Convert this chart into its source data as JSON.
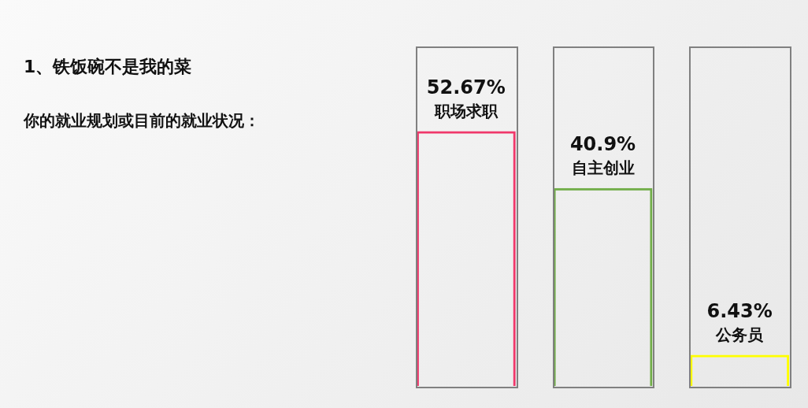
{
  "chart_data": {
    "type": "bar",
    "title": "1、铁饭碗不是我的菜",
    "subtitle": "你的就业规划或目前的就业状况：",
    "categories": [
      "职场求职",
      "自主创业",
      "公务员"
    ],
    "values": [
      52.67,
      40.9,
      6.43
    ],
    "value_labels": [
      "52.67%",
      "40.9%",
      "6.43%"
    ],
    "colors": [
      "#f0386b",
      "#70ad47",
      "#ffff00"
    ]
  }
}
